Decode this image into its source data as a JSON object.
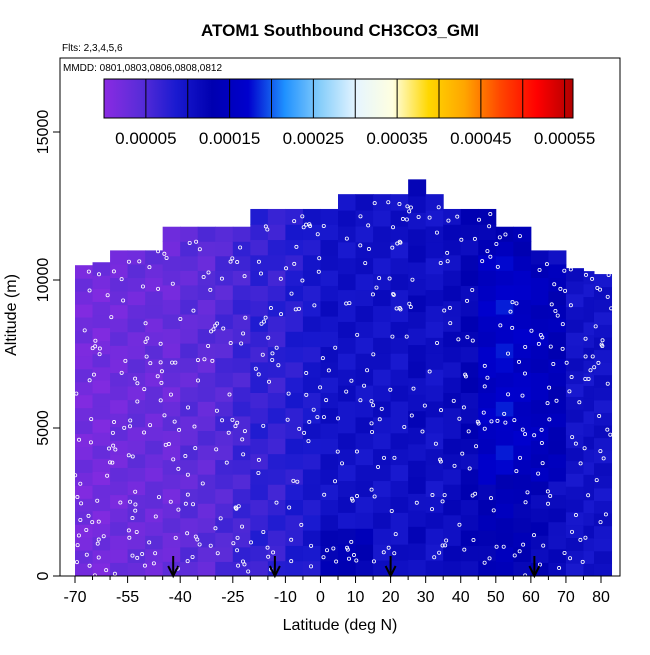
{
  "chart_data": {
    "type": "heatmap",
    "title": "ATOM1 Southbound CH3CO3_GMI",
    "flights_label": "Flts: 2,3,4,5,6",
    "dates_label": "MMDD: 0801,0803,0806,0808,0812",
    "xlabel": "Latitude (deg N)",
    "ylabel": "Altitude (m)",
    "xlim": [
      -70,
      84
    ],
    "ylim": [
      0,
      17500
    ],
    "x_ticks": [
      -70,
      -55,
      -40,
      -25,
      -10,
      0,
      10,
      20,
      30,
      40,
      50,
      60,
      70,
      80
    ],
    "x_tick_labels": [
      "-70",
      "-55",
      "-40",
      "-25",
      "-10",
      "0",
      "10",
      "20",
      "30",
      "40",
      "50",
      "60",
      "70",
      "80"
    ],
    "x_minor_ticks": [
      -65,
      -60,
      -50,
      -45,
      -35,
      -30,
      -20,
      -15,
      -5,
      5,
      15,
      25,
      35,
      45,
      55,
      65,
      75
    ],
    "y_ticks": [
      0,
      5000,
      10000,
      15000
    ],
    "y_tick_labels": [
      "0",
      "5000",
      "10000",
      "15000"
    ],
    "colorbar": {
      "range": [
        0.0,
        0.00056
      ],
      "tick_values": [
        5e-05,
        0.00015,
        0.00025,
        0.00035,
        0.00045,
        0.00055
      ],
      "tick_labels": [
        "0.00005",
        "0.00015",
        "0.00025",
        "0.00035",
        "0.00045",
        "0.00055"
      ],
      "boundaries": [
        0.0,
        5e-05,
        0.0001,
        0.00015,
        0.0002,
        0.00025,
        0.0003,
        0.00035,
        0.0004,
        0.00045,
        0.0005,
        0.00055
      ],
      "colors": [
        "#8a2be2",
        "#5a2cd8",
        "#1a1ad0",
        "#0000b0",
        "#0000cd",
        "#1e90ff",
        "#87cefa",
        "#e6f5ff",
        "#ffffe0",
        "#ffd700",
        "#ffa500",
        "#ff4500",
        "#ff0000",
        "#b00000"
      ]
    },
    "field_columns": [
      {
        "lat": -70,
        "top": 10500,
        "value": 2e-05
      },
      {
        "lat": -65,
        "top": 10600,
        "value": 2e-05
      },
      {
        "lat": -60,
        "top": 11000,
        "value": 2.5e-05
      },
      {
        "lat": -55,
        "top": 11000,
        "value": 3e-05
      },
      {
        "lat": -50,
        "top": 11000,
        "value": 3e-05
      },
      {
        "lat": -45,
        "top": 11800,
        "value": 3e-05
      },
      {
        "lat": -40,
        "top": 11800,
        "value": 4e-05
      },
      {
        "lat": -35,
        "top": 11800,
        "value": 4e-05
      },
      {
        "lat": -30,
        "top": 11800,
        "value": 5e-05
      },
      {
        "lat": -25,
        "top": 11800,
        "value": 6e-05
      },
      {
        "lat": -20,
        "top": 12400,
        "value": 7e-05
      },
      {
        "lat": -15,
        "top": 12400,
        "value": 7e-05
      },
      {
        "lat": -10,
        "top": 12400,
        "value": 8e-05
      },
      {
        "lat": -5,
        "top": 12400,
        "value": 9e-05
      },
      {
        "lat": 0,
        "top": 12400,
        "value": 0.0001
      },
      {
        "lat": 5,
        "top": 12900,
        "value": 0.0001
      },
      {
        "lat": 10,
        "top": 12900,
        "value": 0.0001
      },
      {
        "lat": 15,
        "top": 12900,
        "value": 0.0001
      },
      {
        "lat": 20,
        "top": 12900,
        "value": 0.0001
      },
      {
        "lat": 25,
        "top": 13400,
        "value": 0.00011
      },
      {
        "lat": 30,
        "top": 12900,
        "value": 0.0001
      },
      {
        "lat": 35,
        "top": 12400,
        "value": 0.00011
      },
      {
        "lat": 40,
        "top": 12400,
        "value": 0.00012
      },
      {
        "lat": 45,
        "top": 12400,
        "value": 0.00013
      },
      {
        "lat": 50,
        "top": 11800,
        "value": 0.00014
      },
      {
        "lat": 55,
        "top": 11800,
        "value": 0.00013
      },
      {
        "lat": 60,
        "top": 11000,
        "value": 0.00012
      },
      {
        "lat": 65,
        "top": 11000,
        "value": 0.00011
      },
      {
        "lat": 70,
        "top": 10400,
        "value": 0.0001
      },
      {
        "lat": 75,
        "top": 10300,
        "value": 0.0001
      },
      {
        "lat": 78,
        "top": 10200,
        "value": 0.0001
      }
    ],
    "surface_markers_lat": [
      -42,
      -13,
      20,
      61
    ]
  }
}
